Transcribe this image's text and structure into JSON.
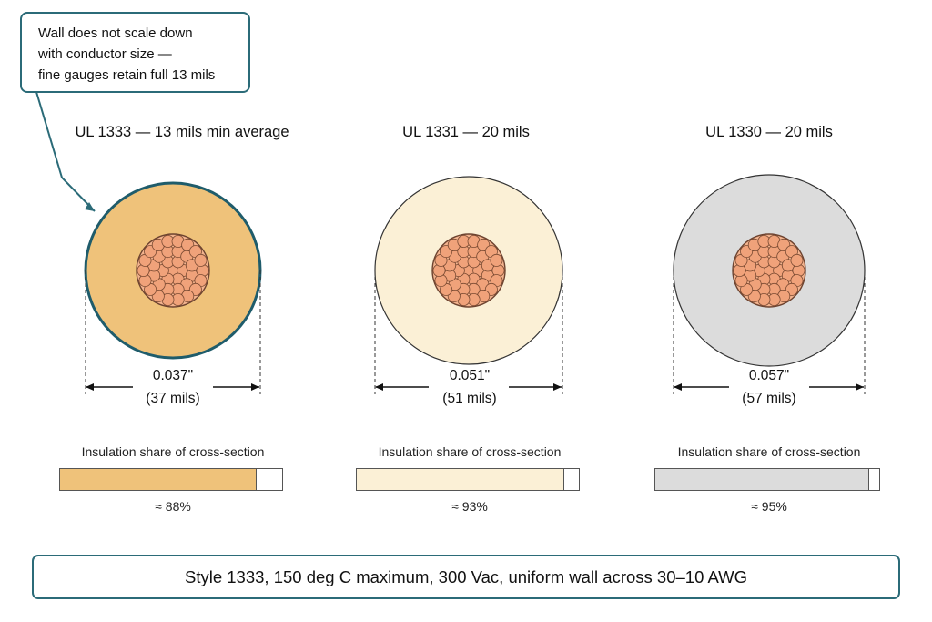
{
  "callout": {
    "lines": [
      "Wall does not scale down",
      "with conductor size —",
      "fine gauges retain full 13 mils"
    ]
  },
  "panels": [
    {
      "title": "UL 1333  — 13 mils min average",
      "dimension": "0.037\"",
      "dimension_mils": "(37 mils)",
      "share_label": "Insulation share of cross-section",
      "share_value": 0.88,
      "share_text": "≈ 88%",
      "insulation_color": "#efc27a",
      "outline_color": "#1f5c6b",
      "highlighted": true
    },
    {
      "title": "UL 1331  — 20 mils",
      "dimension": "0.051\"",
      "dimension_mils": "(51 mils)",
      "share_label": "Insulation share of cross-section",
      "share_value": 0.93,
      "share_text": "≈ 93%",
      "insulation_color": "#fbf0d6",
      "outline_color": "#333333",
      "highlighted": false
    },
    {
      "title": "UL 1330  — 20 mils",
      "dimension": "0.057\"",
      "dimension_mils": "(57 mils)",
      "share_label": "Insulation share of cross-section",
      "share_value": 0.95,
      "share_text": "≈ 95%",
      "insulation_color": "#dcdcdc",
      "outline_color": "#333333",
      "highlighted": false
    }
  ],
  "conductor": {
    "strand_color": "#f0a27a",
    "strand_outline": "#7a4a32"
  },
  "footer": {
    "text": "Style 1333, 150 deg C maximum, 300 Vac, uniform wall across 30–10 AWG"
  }
}
